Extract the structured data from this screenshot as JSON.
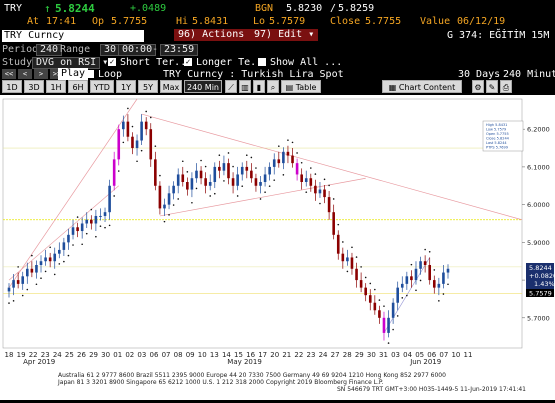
{
  "quote": {
    "ticker": "TRY",
    "last": "5.8244",
    "change": "+.0489",
    "at_label": "At",
    "time": "17:41",
    "bgn_label": "BGN",
    "bid": "5.8230",
    "ask": "5.8259",
    "op_label": "Op",
    "open": "5.7755",
    "hi_label": "Hi",
    "high": "5.8431",
    "lo_label": "Lo",
    "low": "5.7579",
    "close_label": "Close",
    "close": "5.7755",
    "value_label": "Value",
    "value_date": "06/12/19"
  },
  "command": {
    "security": "TRY Curncy",
    "actions_num": "96)",
    "actions_label": "Actions",
    "edit_num": "97)",
    "edit_label": "Edit",
    "page_label": "G 374: EĞİTİM 15M"
  },
  "period": {
    "label": "Period",
    "value": "240",
    "range_label": "Range",
    "range_value": "30",
    "start": "00:00",
    "end": "23:59"
  },
  "study": {
    "label": "Study",
    "value": "DVG on RSI",
    "short_label": "Short Ter...",
    "longer_label": "Longer Te...",
    "show_all_label": "Show All ..."
  },
  "playback": {
    "play_label": "Play",
    "loop_label": "Loop",
    "security_desc": "TRY  Curncy : Turkish Lira Spot",
    "days_label": "30 Days",
    "interval_label": "240 Minutes"
  },
  "tabs": {
    "t1d": "1D",
    "t3d": "3D",
    "t1h": "1H",
    "t6h": "6H",
    "ytd": "YTD",
    "t1y": "1Y",
    "t5y": "5Y",
    "max": "Max",
    "interval": "240 Min",
    "table": "Table",
    "chart_content": "Chart Content"
  },
  "legend": {
    "high": "High 5.8431",
    "low": "Low 5.7579",
    "open": "Open 5.7755",
    "close": "Close 5.8244",
    "last": "Last 5.8244",
    "ptps": "PTPS 5.7699"
  },
  "chart_data": {
    "type": "candlestick",
    "y_range": [
      5.62,
      6.28
    ],
    "y_ticks": [
      "6.2000",
      "6.1000",
      "6.0000",
      "5.9000",
      "5.8000",
      "5.7000"
    ],
    "y_tick_values": [
      6.2,
      6.1,
      6.0,
      5.9,
      5.8,
      5.7
    ],
    "x_labels": [
      "18",
      "19",
      "22",
      "23",
      "24",
      "25",
      "26",
      "29",
      "30",
      "01",
      "02",
      "03",
      "06",
      "07",
      "08",
      "09",
      "10",
      "13",
      "14",
      "15",
      "16",
      "17",
      "20",
      "21",
      "22",
      "23",
      "24",
      "27",
      "28",
      "29",
      "30",
      "31",
      "03",
      "04",
      "05",
      "06",
      "07",
      "10",
      "11"
    ],
    "month_labels": [
      "Apr 2019",
      "May 2019",
      "Jun 2019"
    ],
    "month_label_index": [
      2.5,
      19.5,
      34.5
    ],
    "right_labels": {
      "last": "5.8244",
      "change": "+0.0820",
      "pct": "1.43%",
      "low": "5.7579"
    },
    "closes": [
      5.78,
      5.8,
      5.79,
      5.81,
      5.83,
      5.82,
      5.84,
      5.85,
      5.86,
      5.85,
      5.87,
      5.88,
      5.9,
      5.92,
      5.94,
      5.93,
      5.95,
      5.96,
      5.95,
      5.97,
      5.97,
      5.98,
      6.05,
      6.12,
      6.2,
      6.22,
      6.18,
      6.15,
      6.17,
      6.22,
      6.2,
      6.12,
      6.05,
      5.99,
      6.0,
      6.03,
      6.05,
      6.08,
      6.06,
      6.04,
      6.07,
      6.09,
      6.07,
      6.05,
      6.06,
      6.1,
      6.09,
      6.11,
      6.07,
      6.05,
      6.08,
      6.1,
      6.09,
      6.07,
      6.05,
      6.06,
      6.08,
      6.1,
      6.12,
      6.11,
      6.14,
      6.13,
      6.11,
      6.08,
      6.06,
      6.07,
      6.05,
      6.03,
      6.04,
      6.02,
      5.98,
      5.92,
      5.87,
      5.85,
      5.86,
      5.83,
      5.8,
      5.78,
      5.76,
      5.74,
      5.72,
      5.7,
      5.66,
      5.7,
      5.74,
      5.78,
      5.79,
      5.81,
      5.8,
      5.83,
      5.85,
      5.84,
      5.8,
      5.78,
      5.79,
      5.82,
      5.83
    ]
  },
  "footer": {
    "line1": "Australia 61 2 9777 8600 Brazil 5511 2395 9000 Europe 44 20 7330 7500 Germany 49 69 9204 1210 Hong Kong 852 2977 6000",
    "line2": "Japan 81 3 3201 8900          Singapore 65 6212 1000         U.S. 1 212 318 2000          Copyright 2019 Bloomberg Finance L.P.",
    "line3": "SN 546679 TRT  GMT+3:00 H035-1449-5 11-Jun-2019 17:41:41"
  },
  "colors": {
    "up": "#1f4e9c",
    "down": "#8b0000",
    "divergence": "#cc00cc",
    "trend": "#e89aa0",
    "level": "#e6e600",
    "accent": "#f5a623"
  }
}
